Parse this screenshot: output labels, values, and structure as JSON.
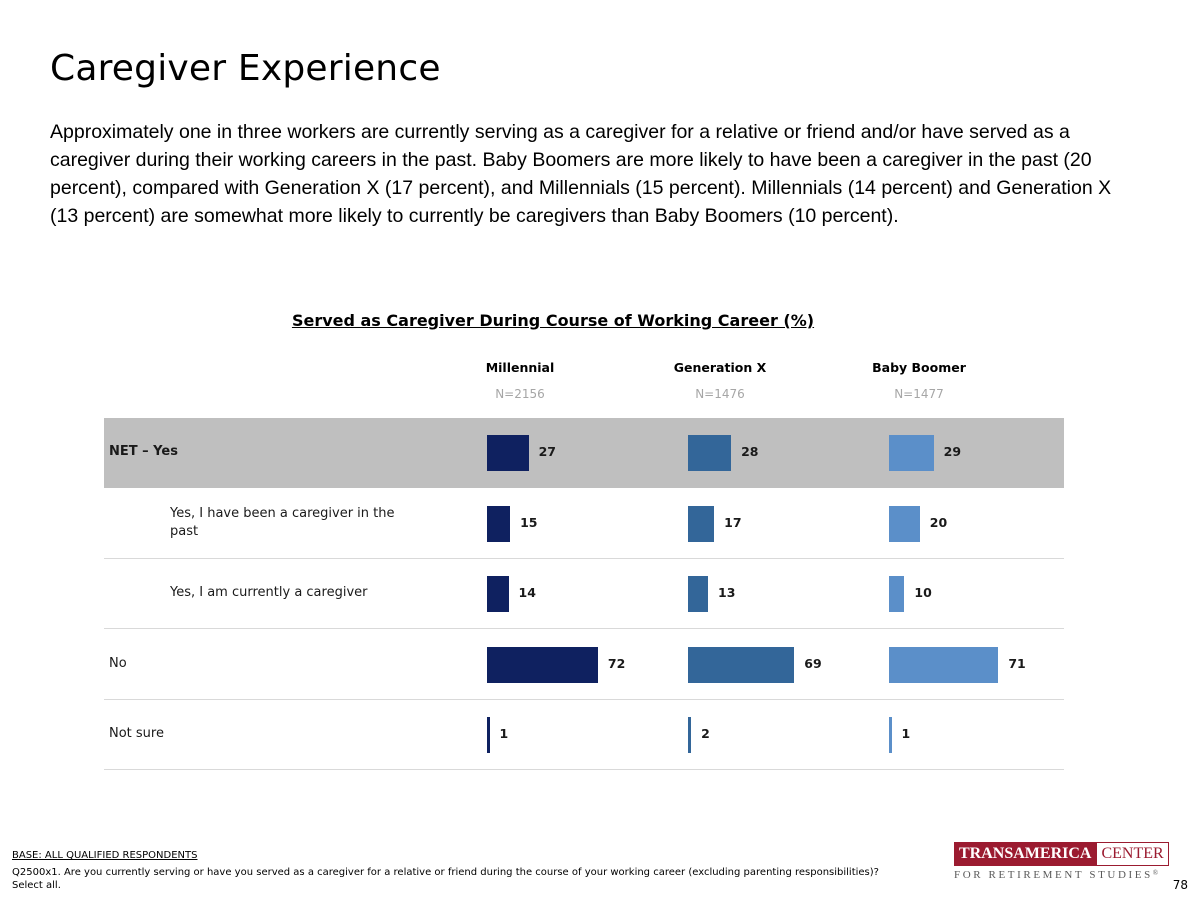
{
  "page": {
    "title": "Caregiver Experience",
    "summary": "Approximately one in three workers are currently serving as a caregiver for a relative or friend and/or have served as a caregiver during their working careers in the past. Baby Boomers are more likely to have been a caregiver in the past (20 percent), compared with Generation X (17 percent), and Millennials (15 percent). Millennials (14 percent) and Generation X (13 percent) are somewhat more likely to currently be caregivers than Baby Boomers (10 percent).",
    "page_number": "78"
  },
  "footer": {
    "base": "BASE: ALL QUALIFIED RESPONDENTS",
    "question": "Q2500x1. Are you currently serving or have you served as a caregiver for a relative or friend during the course of your working career (excluding parenting responsibilities)? Select all."
  },
  "logo": {
    "word1": "TRANSAMERICA",
    "word2": "CENTER",
    "sub": "FOR RETIREMENT STUDIES",
    "reg": "®"
  },
  "colors": {
    "millennial": "#0f2160",
    "genx": "#336699",
    "boomer": "#5b8fc9",
    "net_row_bg": "#bfbfbf"
  },
  "chart_data": {
    "type": "bar",
    "orientation": "horizontal",
    "title": "Served as Caregiver During Course of Working Career (%)",
    "categories": [
      "NET – Yes",
      "Yes, I have been a caregiver in the past",
      "Yes, I am currently a caregiver",
      "No",
      "Not sure"
    ],
    "series": [
      {
        "name": "Millennial",
        "n": "N=2156",
        "values": [
          27,
          15,
          14,
          72,
          1
        ]
      },
      {
        "name": "Generation X",
        "n": "N=1476",
        "values": [
          28,
          17,
          13,
          69,
          2
        ]
      },
      {
        "name": "Baby Boomer",
        "n": "N=1477",
        "values": [
          29,
          20,
          10,
          71,
          1
        ]
      }
    ],
    "xlim": [
      0,
      100
    ],
    "unit": "%"
  }
}
